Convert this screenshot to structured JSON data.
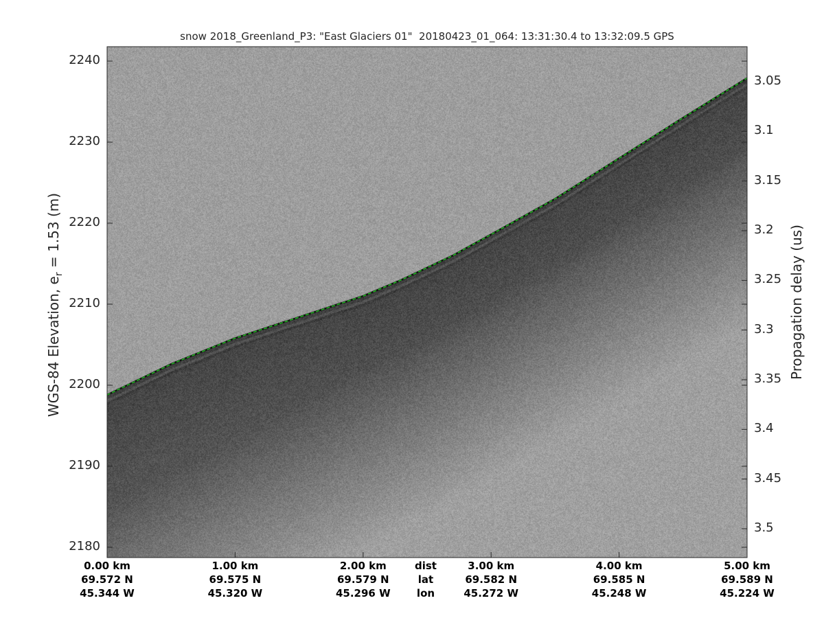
{
  "chart_data": {
    "type": "heatmap",
    "title": "snow 2018_Greenland_P3: \"East Glaciers 01\"  20180423_01_064: 13:31:30.4 to 13:32:09.5 GPS",
    "ylabel_left": "WGS-84 Elevation, e",
    "ylabel_left_sub": "r",
    "ylabel_left_suffix": " = 1.53 (m)",
    "ylabel_right": "Propagation delay (us)",
    "ylim_left": [
      2179,
      2241.8
    ],
    "left_ticks": [
      "2180",
      "2190",
      "2200",
      "2210",
      "2220",
      "2230",
      "2240"
    ],
    "left_tick_values": [
      2180,
      2190,
      2200,
      2210,
      2220,
      2230,
      2240
    ],
    "right_ticks": [
      "3.05",
      "3.1",
      "3.15",
      "3.2",
      "3.25",
      "3.3",
      "3.35",
      "3.4",
      "3.45",
      "3.5"
    ],
    "right_tick_values": [
      3.05,
      3.1,
      3.15,
      3.2,
      3.25,
      3.3,
      3.35,
      3.4,
      3.45,
      3.5
    ],
    "xlim_km": [
      0,
      5
    ],
    "x_rows": {
      "dist": [
        "0.00 km",
        "1.00 km",
        "2.00 km",
        "3.00 km",
        "4.00 km",
        "5.00 km"
      ],
      "lat": [
        "69.572 N",
        "69.575 N",
        "69.579 N",
        "69.582 N",
        "69.585 N",
        "69.589 N"
      ],
      "lon": [
        "45.344 W",
        "45.320 W",
        "45.296 W",
        "45.272 W",
        "45.248 W",
        "45.224 W"
      ]
    },
    "row_labels": [
      "dist",
      "lat",
      "lon"
    ],
    "surface_line": {
      "color": "#22c022",
      "x_km": [
        0,
        0.5,
        1.0,
        1.5,
        2.0,
        2.3,
        2.7,
        3.0,
        3.5,
        4.0,
        4.5,
        5.0
      ],
      "elevation_m": [
        2198.8,
        2202.6,
        2205.8,
        2208.4,
        2211.0,
        2213.0,
        2216.0,
        2218.6,
        2223.0,
        2228.0,
        2233.0,
        2237.9
      ]
    },
    "colormap": "gray"
  }
}
